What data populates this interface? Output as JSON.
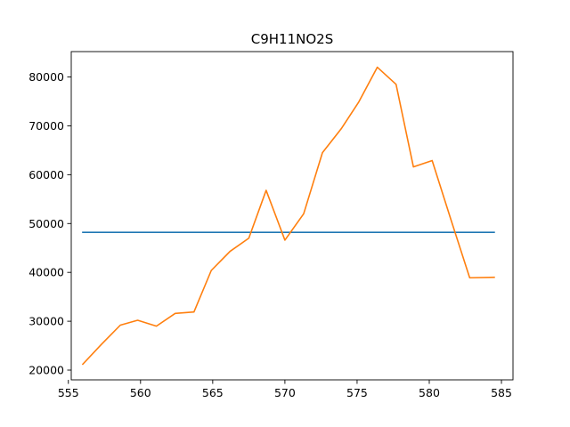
{
  "chart_data": {
    "type": "line",
    "title": "C9H11NO2S",
    "xlabel": "",
    "ylabel": "",
    "xlim": [
      555.2,
      585.8
    ],
    "ylim": [
      18000,
      85200
    ],
    "xticks": [
      555,
      560,
      565,
      570,
      575,
      580,
      585
    ],
    "yticks": [
      20000,
      30000,
      40000,
      50000,
      60000,
      70000,
      80000
    ],
    "grid": false,
    "legend": "none",
    "series": [
      {
        "color": "#1f77b4",
        "x": [
          556,
          584.5
        ],
        "y": [
          48200,
          48200
        ]
      },
      {
        "color": "#ff7f0e",
        "x": [
          556,
          557.3,
          558.6,
          559.8,
          561.1,
          562.4,
          563.7,
          564.9,
          566.2,
          567.5,
          568.7,
          570.0,
          571.3,
          572.6,
          573.9,
          575.1,
          576.4,
          577.7,
          578.9,
          580.2,
          581.5,
          582.8,
          584.5
        ],
        "y": [
          21200,
          25300,
          29200,
          30200,
          29000,
          31600,
          31900,
          40400,
          44300,
          47000,
          56800,
          46600,
          52000,
          64500,
          69400,
          74800,
          82000,
          78500,
          61600,
          62900,
          50800,
          38900,
          39000
        ]
      }
    ]
  }
}
